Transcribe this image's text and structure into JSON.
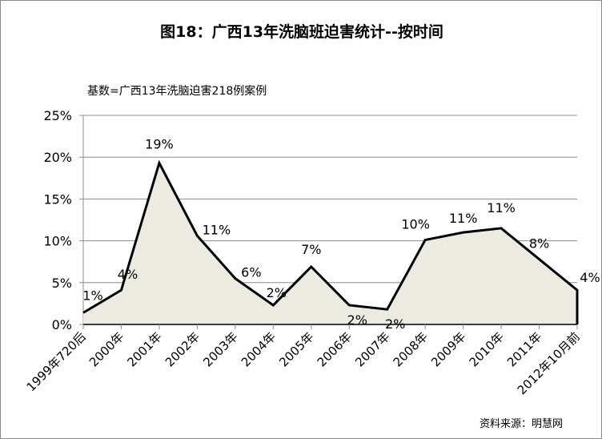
{
  "chart_data": {
    "type": "area",
    "title": "图18：广西13年洗脑班迫害统计--按时间",
    "subtitle": "基数=广西13年洗脑迫害218例案例",
    "source": "资料来源：明慧网",
    "categories": [
      "1999年720后",
      "2000年",
      "2001年",
      "2002年",
      "2003年",
      "2004年",
      "2005年",
      "2006年",
      "2007年",
      "2008年",
      "2009年",
      "2010年",
      "2011年",
      "2012年10月前"
    ],
    "values": [
      1.4,
      4.1,
      19.3,
      10.6,
      5.5,
      2.3,
      6.9,
      2.3,
      1.8,
      10.1,
      11.0,
      11.5,
      7.8,
      4.1
    ],
    "data_labels": [
      "1%",
      "4%",
      "19%",
      "11%",
      "6%",
      "2%",
      "7%",
      "2%",
      "2%",
      "10%",
      "11%",
      "11%",
      "8%",
      "4%"
    ],
    "y_ticks": [
      "0%",
      "5%",
      "10%",
      "15%",
      "20%",
      "25%"
    ],
    "y_tick_values": [
      0,
      5,
      10,
      15,
      20,
      25
    ],
    "ylim": [
      0,
      25
    ],
    "xlabel": "",
    "ylabel": "",
    "grid": true,
    "legend": "none",
    "colors": {
      "fill": "#ecebe1",
      "line": "#000000",
      "grid": "#8c8c8c"
    }
  }
}
